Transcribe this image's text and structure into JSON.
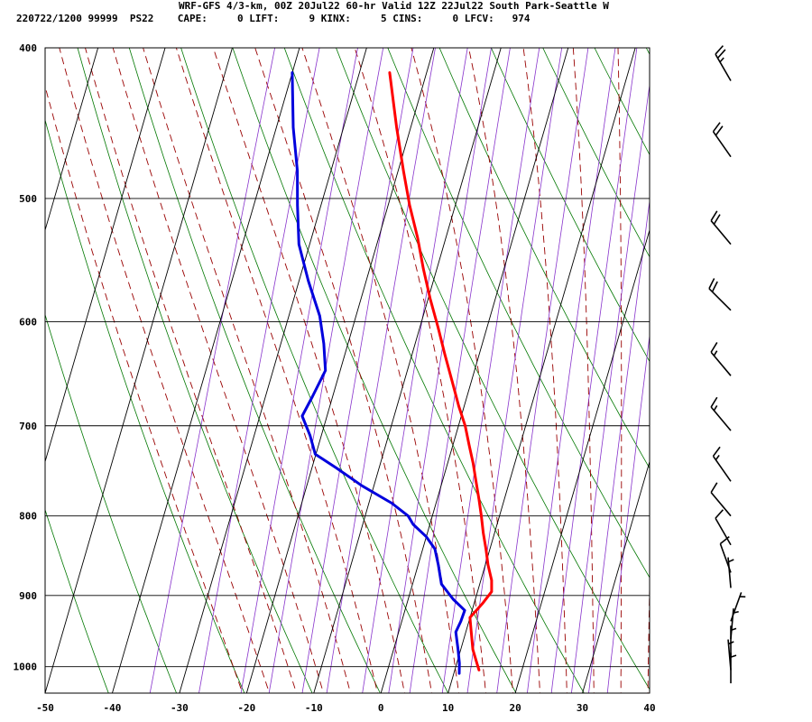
{
  "header": {
    "line1": "WRF-GFS 4/3-km, 00Z 20Jul22 60-hr Valid 12Z 22Jul22 South Park-Seattle W",
    "line2": "220722/1200 99999  PS22    CAPE:     0 LIFT:     9 KINX:     5 CINS:     0 LFCV:   974"
  },
  "chart_data": {
    "type": "line",
    "title": "WRF-GFS 4/3-km, 00Z 20Jul22 60-hr Valid 12Z 22Jul22 South Park-Seattle W",
    "subtitle": "220722/1200 99999  PS22    CAPE:     0 LIFT:     9 KINX:     5 CINS:     0 LFCV:   974",
    "diagram": "skew-T log-P sounding",
    "xlabel": "",
    "ylabel": "",
    "x_ticks": [
      -50,
      -40,
      -30,
      -20,
      -10,
      0,
      10,
      20,
      30,
      40
    ],
    "y_ticks": [
      400,
      500,
      600,
      700,
      800,
      900,
      1000
    ],
    "xlim": [
      -50,
      40
    ],
    "ylim": [
      1040,
      400
    ],
    "y_scale": "log",
    "grid": true,
    "series": [
      {
        "color": "#ff0000",
        "note_units": "temperature (C) vs pressure (hPa)",
        "points": [
          [
            -25.5,
            415
          ],
          [
            -22.1,
            450
          ],
          [
            -19.2,
            480
          ],
          [
            -16.8,
            505
          ],
          [
            -14.2,
            530
          ],
          [
            -12.0,
            555
          ],
          [
            -9.7,
            580
          ],
          [
            -7.3,
            605
          ],
          [
            -5.1,
            630
          ],
          [
            -2.9,
            655
          ],
          [
            -0.8,
            680
          ],
          [
            1.0,
            700
          ],
          [
            2.4,
            720
          ],
          [
            3.8,
            740
          ],
          [
            5.0,
            760
          ],
          [
            6.2,
            780
          ],
          [
            7.3,
            800
          ],
          [
            8.3,
            820
          ],
          [
            9.4,
            840
          ],
          [
            10.4,
            860
          ],
          [
            11.6,
            880
          ],
          [
            12.1,
            895
          ],
          [
            11.3,
            910
          ],
          [
            10.0,
            930
          ],
          [
            10.8,
            950
          ],
          [
            11.8,
            975
          ],
          [
            13.0,
            995
          ],
          [
            13.6,
            1005
          ]
        ]
      },
      {
        "color": "#0000dd",
        "note_units": "dewpoint (C) vs pressure (hPa)",
        "points": [
          [
            -40.0,
            415
          ],
          [
            -37.5,
            450
          ],
          [
            -35.0,
            480
          ],
          [
            -33.5,
            505
          ],
          [
            -31.6,
            535
          ],
          [
            -28.6,
            565
          ],
          [
            -25.4,
            595
          ],
          [
            -23.6,
            620
          ],
          [
            -22.2,
            645
          ],
          [
            -23.0,
            670
          ],
          [
            -23.7,
            690
          ],
          [
            -21.7,
            710
          ],
          [
            -20.1,
            730
          ],
          [
            -16.4,
            745
          ],
          [
            -11.8,
            765
          ],
          [
            -6.6,
            785
          ],
          [
            -3.6,
            800
          ],
          [
            -2.5,
            810
          ],
          [
            0.0,
            825
          ],
          [
            1.8,
            840
          ],
          [
            3.0,
            860
          ],
          [
            4.3,
            885
          ],
          [
            6.7,
            905
          ],
          [
            8.9,
            920
          ],
          [
            8.8,
            935
          ],
          [
            8.5,
            950
          ],
          [
            9.6,
            975
          ],
          [
            10.4,
            995
          ],
          [
            10.8,
            1010
          ]
        ]
      }
    ],
    "background_lines": {
      "isotherm_color": "#000000",
      "dry_adiabat_color": "#007700",
      "moist_adiabat_color": "#990000",
      "mixing_ratio_color": "#8833cc"
    },
    "wind_barbs": {
      "color": "#000000",
      "note_units": "pressure (hPa), direction (deg), speed (kt)",
      "barbs": [
        [
          420,
          330,
          25
        ],
        [
          470,
          325,
          20
        ],
        [
          535,
          320,
          20
        ],
        [
          590,
          315,
          20
        ],
        [
          650,
          320,
          15
        ],
        [
          705,
          320,
          15
        ],
        [
          760,
          325,
          15
        ],
        [
          800,
          320,
          10
        ],
        [
          835,
          330,
          10
        ],
        [
          870,
          340,
          10
        ],
        [
          890,
          355,
          5
        ],
        [
          935,
          20,
          5
        ],
        [
          960,
          5,
          5
        ],
        [
          985,
          0,
          5
        ],
        [
          1005,
          355,
          5
        ],
        [
          1025,
          0,
          5
        ]
      ]
    }
  }
}
